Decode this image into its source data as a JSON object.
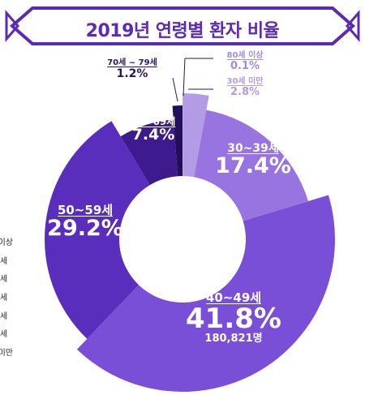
{
  "chart_data": {
    "type": "pie",
    "style": "donut",
    "title": "2019년 연령별 환자 비율",
    "slices": [
      {
        "category": "80세 이상",
        "value": 0.1,
        "label": "0.1%",
        "color": "#b9a6e8"
      },
      {
        "category": "30세 미만",
        "value": 2.8,
        "label": "2.8%",
        "color": "#b39be6"
      },
      {
        "category": "30~39세",
        "value": 17.4,
        "label": "17.4%",
        "color": "#9874e0"
      },
      {
        "category": "40~49세",
        "value": 41.8,
        "label": "41.8%",
        "count": "180,821명",
        "color": "#7a4fd8"
      },
      {
        "category": "50~59세",
        "value": 29.2,
        "label": "29.2%",
        "color": "#5a2ebd"
      },
      {
        "category": "60~69세",
        "value": 7.4,
        "label": "7.4%",
        "color": "#3d1a8d"
      },
      {
        "category": "70세 ~ 79세",
        "value": 1.2,
        "label": "1.2%",
        "color": "#24105a"
      }
    ],
    "legend_partial": [
      "이상",
      "세",
      "세",
      "세",
      "세",
      "세",
      "미만"
    ]
  },
  "colors": {
    "banner": "#5b2bb5",
    "title": "#5b2bb5",
    "dark_label": "#2a1466",
    "light_label": "#a58be0"
  }
}
